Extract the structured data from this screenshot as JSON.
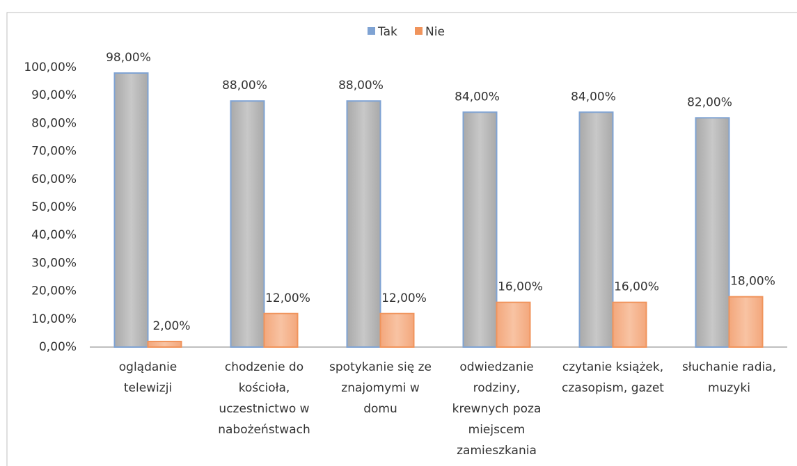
{
  "chart_data": {
    "type": "bar",
    "categories": [
      [
        "oglądanie",
        "telewizji"
      ],
      [
        "chodzenie do",
        "kościoła,",
        "uczestnictwo w",
        "nabożeństwach"
      ],
      [
        "spotykanie się ze",
        "znajomymi w",
        "domu"
      ],
      [
        "odwiedzanie",
        "rodziny,",
        "krewnych poza",
        "miejscem",
        "zamieszkania"
      ],
      [
        "czytanie książek,",
        "czasopism, gazet"
      ],
      [
        "słuchanie radia,",
        "muzyki"
      ]
    ],
    "series": [
      {
        "name": "Tak",
        "color": "#7fa3d3",
        "values": [
          98,
          88,
          88,
          84,
          84,
          82
        ],
        "value_labels": [
          "98,00%",
          "88,00%",
          "88,00%",
          "84,00%",
          "84,00%",
          "82,00%"
        ]
      },
      {
        "name": "Nie",
        "color": "#f0945c",
        "values": [
          2,
          12,
          12,
          16,
          16,
          18
        ],
        "value_labels": [
          "2,00%",
          "12,00%",
          "12,00%",
          "16,00%",
          "16,00%",
          "18,00%"
        ]
      }
    ],
    "ylim": [
      0,
      100
    ],
    "yticks": [
      {
        "value": 0,
        "label": "0,00%"
      },
      {
        "value": 10,
        "label": "10,00%"
      },
      {
        "value": 20,
        "label": "20,00%"
      },
      {
        "value": 30,
        "label": "30,00%"
      },
      {
        "value": 40,
        "label": "40,00%"
      },
      {
        "value": 50,
        "label": "50,00%"
      },
      {
        "value": 60,
        "label": "60,00%"
      },
      {
        "value": 70,
        "label": "70,00%"
      },
      {
        "value": 80,
        "label": "80,00%"
      },
      {
        "value": 90,
        "label": "90,00%"
      },
      {
        "value": 100,
        "label": "100,00%"
      }
    ],
    "legend": "top"
  }
}
